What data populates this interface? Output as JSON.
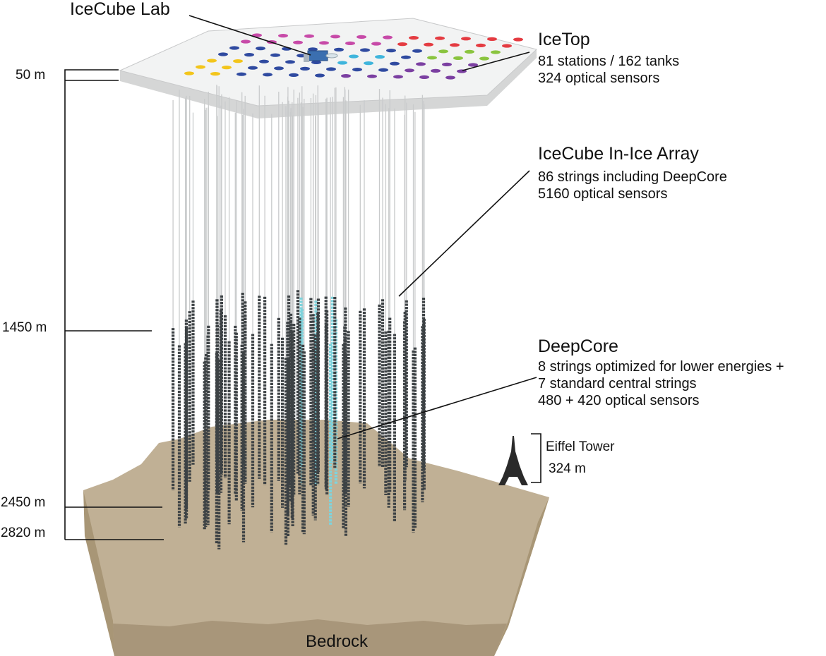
{
  "labels": {
    "icecube_lab": "IceCube Lab",
    "icetop": {
      "title": "IceTop",
      "line1": "81 stations / 162 tanks",
      "line2": "324 optical sensors"
    },
    "inice": {
      "title": "IceCube In-Ice Array",
      "line1": "86 strings including DeepCore",
      "line2": "5160 optical sensors"
    },
    "deepcore": {
      "title": "DeepCore",
      "line1": "8 strings optimized for lower energies +",
      "line2": "7 standard central strings",
      "line3": "480 + 420 optical sensors"
    },
    "eiffel": {
      "name": "Eiffel Tower",
      "height": "324 m"
    },
    "bedrock": "Bedrock"
  },
  "depths": [
    "50 m",
    "1450 m",
    "2450 m",
    "2820 m"
  ],
  "colors": {
    "bedrock_top": "#c0b095",
    "bedrock_side_left": "#a89676",
    "bedrock_front": "#b5a383",
    "bedrock_bottom": "#a8967a",
    "surface_top": "#f2f3f3",
    "surface_side": "#d5d6d6",
    "sensor": "#3d4245",
    "cable": "#c9cbcc",
    "deepcore": "#7fd3dc"
  },
  "icetop_station_colors": [
    "#c74aa8",
    "#e43b41",
    "#8ac43f",
    "#2f4aa0",
    "#f3c51b",
    "#7b3fa1",
    "#3fb5dc"
  ]
}
